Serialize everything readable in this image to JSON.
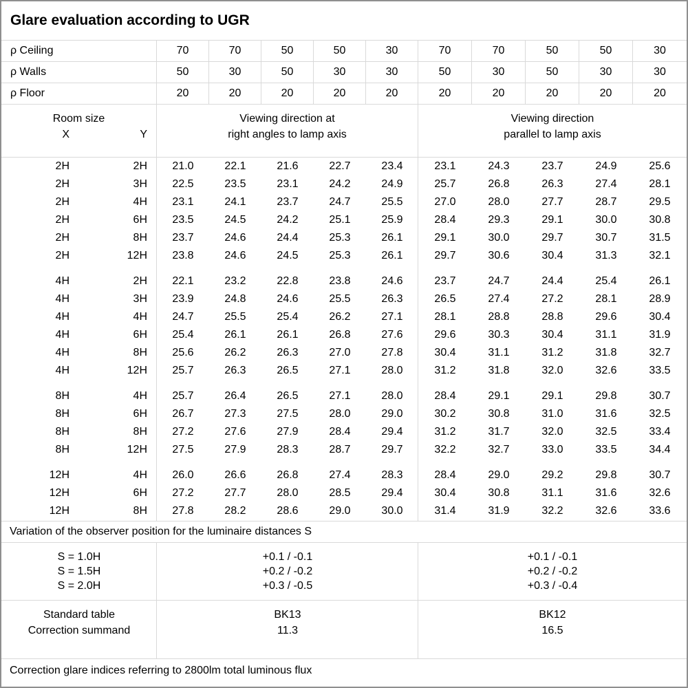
{
  "title": "Glare evaluation according to UGR",
  "reflectance": {
    "rows": [
      {
        "label": "ρ Ceiling",
        "values": [
          "70",
          "70",
          "50",
          "50",
          "30",
          "70",
          "70",
          "50",
          "50",
          "30"
        ]
      },
      {
        "label": "ρ Walls",
        "values": [
          "50",
          "30",
          "50",
          "30",
          "30",
          "50",
          "30",
          "50",
          "30",
          "30"
        ]
      },
      {
        "label": "ρ Floor",
        "values": [
          "20",
          "20",
          "20",
          "20",
          "20",
          "20",
          "20",
          "20",
          "20",
          "20"
        ]
      }
    ]
  },
  "header": {
    "room_size": "Room size",
    "x": "X",
    "y": "Y",
    "left_direction": [
      "Viewing direction at",
      "right angles to lamp axis"
    ],
    "right_direction": [
      "Viewing direction",
      "parallel to lamp axis"
    ]
  },
  "ugr_blocks": [
    {
      "rows": [
        {
          "x": "2H",
          "y": "2H",
          "values": [
            "21.0",
            "22.1",
            "21.6",
            "22.7",
            "23.4",
            "23.1",
            "24.3",
            "23.7",
            "24.9",
            "25.6"
          ]
        },
        {
          "x": "2H",
          "y": "3H",
          "values": [
            "22.5",
            "23.5",
            "23.1",
            "24.2",
            "24.9",
            "25.7",
            "26.8",
            "26.3",
            "27.4",
            "28.1"
          ]
        },
        {
          "x": "2H",
          "y": "4H",
          "values": [
            "23.1",
            "24.1",
            "23.7",
            "24.7",
            "25.5",
            "27.0",
            "28.0",
            "27.7",
            "28.7",
            "29.5"
          ]
        },
        {
          "x": "2H",
          "y": "6H",
          "values": [
            "23.5",
            "24.5",
            "24.2",
            "25.1",
            "25.9",
            "28.4",
            "29.3",
            "29.1",
            "30.0",
            "30.8"
          ]
        },
        {
          "x": "2H",
          "y": "8H",
          "values": [
            "23.7",
            "24.6",
            "24.4",
            "25.3",
            "26.1",
            "29.1",
            "30.0",
            "29.7",
            "30.7",
            "31.5"
          ]
        },
        {
          "x": "2H",
          "y": "12H",
          "values": [
            "23.8",
            "24.6",
            "24.5",
            "25.3",
            "26.1",
            "29.7",
            "30.6",
            "30.4",
            "31.3",
            "32.1"
          ]
        }
      ]
    },
    {
      "rows": [
        {
          "x": "4H",
          "y": "2H",
          "values": [
            "22.1",
            "23.2",
            "22.8",
            "23.8",
            "24.6",
            "23.7",
            "24.7",
            "24.4",
            "25.4",
            "26.1"
          ]
        },
        {
          "x": "4H",
          "y": "3H",
          "values": [
            "23.9",
            "24.8",
            "24.6",
            "25.5",
            "26.3",
            "26.5",
            "27.4",
            "27.2",
            "28.1",
            "28.9"
          ]
        },
        {
          "x": "4H",
          "y": "4H",
          "values": [
            "24.7",
            "25.5",
            "25.4",
            "26.2",
            "27.1",
            "28.1",
            "28.8",
            "28.8",
            "29.6",
            "30.4"
          ]
        },
        {
          "x": "4H",
          "y": "6H",
          "values": [
            "25.4",
            "26.1",
            "26.1",
            "26.8",
            "27.6",
            "29.6",
            "30.3",
            "30.4",
            "31.1",
            "31.9"
          ]
        },
        {
          "x": "4H",
          "y": "8H",
          "values": [
            "25.6",
            "26.2",
            "26.3",
            "27.0",
            "27.8",
            "30.4",
            "31.1",
            "31.2",
            "31.8",
            "32.7"
          ]
        },
        {
          "x": "4H",
          "y": "12H",
          "values": [
            "25.7",
            "26.3",
            "26.5",
            "27.1",
            "28.0",
            "31.2",
            "31.8",
            "32.0",
            "32.6",
            "33.5"
          ]
        }
      ]
    },
    {
      "rows": [
        {
          "x": "8H",
          "y": "4H",
          "values": [
            "25.7",
            "26.4",
            "26.5",
            "27.1",
            "28.0",
            "28.4",
            "29.1",
            "29.1",
            "29.8",
            "30.7"
          ]
        },
        {
          "x": "8H",
          "y": "6H",
          "values": [
            "26.7",
            "27.3",
            "27.5",
            "28.0",
            "29.0",
            "30.2",
            "30.8",
            "31.0",
            "31.6",
            "32.5"
          ]
        },
        {
          "x": "8H",
          "y": "8H",
          "values": [
            "27.2",
            "27.6",
            "27.9",
            "28.4",
            "29.4",
            "31.2",
            "31.7",
            "32.0",
            "32.5",
            "33.4"
          ]
        },
        {
          "x": "8H",
          "y": "12H",
          "values": [
            "27.5",
            "27.9",
            "28.3",
            "28.7",
            "29.7",
            "32.2",
            "32.7",
            "33.0",
            "33.5",
            "34.4"
          ]
        }
      ]
    },
    {
      "rows": [
        {
          "x": "12H",
          "y": "4H",
          "values": [
            "26.0",
            "26.6",
            "26.8",
            "27.4",
            "28.3",
            "28.4",
            "29.0",
            "29.2",
            "29.8",
            "30.7"
          ]
        },
        {
          "x": "12H",
          "y": "6H",
          "values": [
            "27.2",
            "27.7",
            "28.0",
            "28.5",
            "29.4",
            "30.4",
            "30.8",
            "31.1",
            "31.6",
            "32.6"
          ]
        },
        {
          "x": "12H",
          "y": "8H",
          "values": [
            "27.8",
            "28.2",
            "28.6",
            "29.0",
            "30.0",
            "31.4",
            "31.9",
            "32.2",
            "32.6",
            "33.6"
          ]
        }
      ]
    }
  ],
  "variation_note": "Variation of the observer position for the luminaire distances S",
  "variation": {
    "rows": [
      {
        "label": "S = 1.0H",
        "left": "+0.1 / -0.1",
        "right": "+0.1 / -0.1"
      },
      {
        "label": "S = 1.5H",
        "left": "+0.2 / -0.2",
        "right": "+0.2 / -0.2"
      },
      {
        "label": "S = 2.0H",
        "left": "+0.3 / -0.5",
        "right": "+0.3 / -0.4"
      }
    ]
  },
  "standard": {
    "rows": [
      {
        "label": "Standard table",
        "left": "BK13",
        "right": "BK12"
      },
      {
        "label": "Correction summand",
        "left": "11.3",
        "right": "16.5"
      }
    ]
  },
  "footer_note": "Correction glare indices referring to 2800lm total luminous flux",
  "colors": {
    "grid_line": "#d9d9d9",
    "outer_border": "#8f8f8f",
    "text": "#000000",
    "background": "#ffffff"
  }
}
